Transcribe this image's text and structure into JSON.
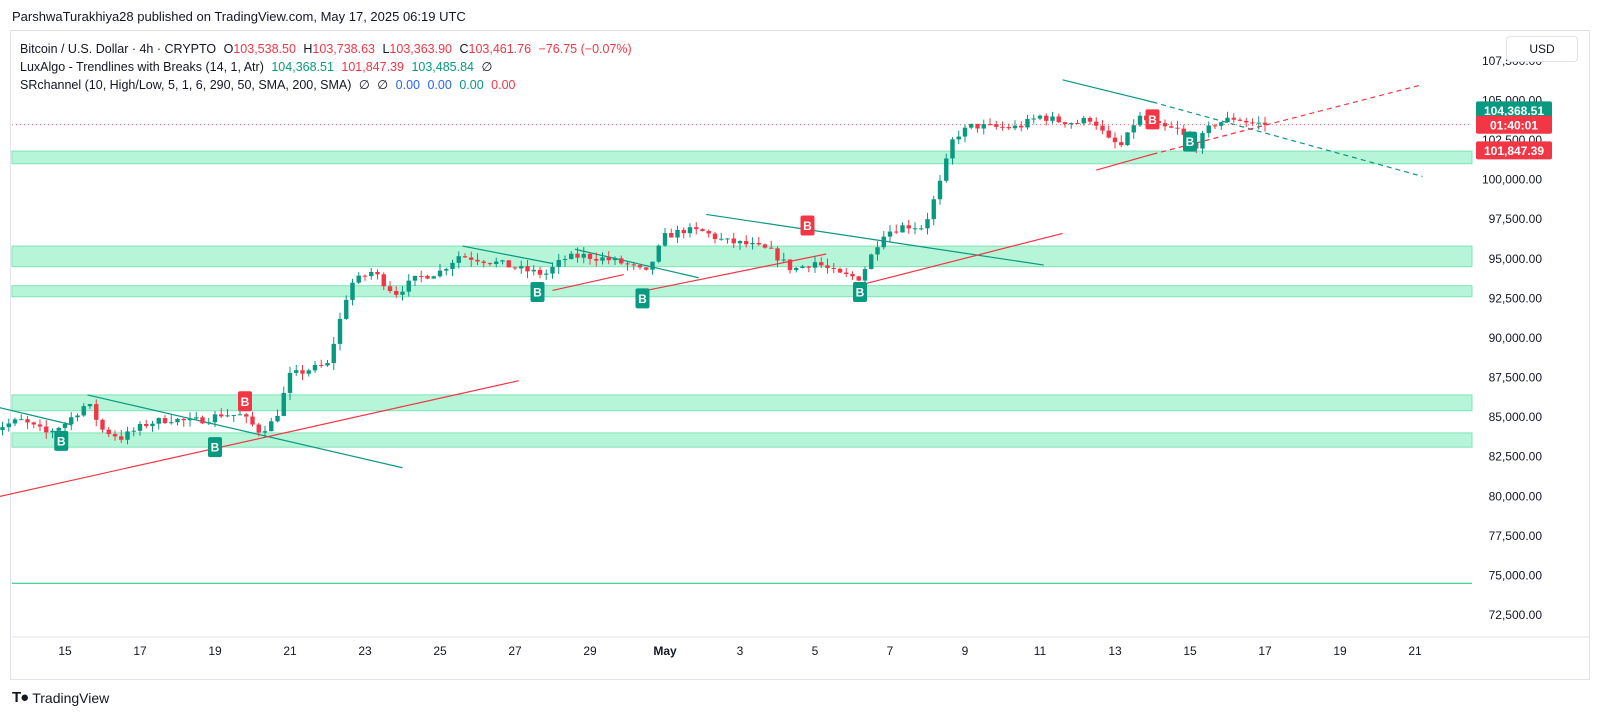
{
  "publish_line": "ParshwaTurakhiya28 published on TradingView.com, May 17, 2025 06:19 UTC",
  "legend": {
    "symbol": "Bitcoin / U.S. Dollar · 4h · CRYPTO",
    "o_label": "O",
    "o_value": "103,538.50",
    "h_label": "H",
    "h_value": "103,738.63",
    "l_label": "L",
    "l_value": "103,363.90",
    "c_label": "C",
    "c_value": "103,461.76",
    "change": "−76.75 (−0.07%)",
    "lux_name": "LuxAlgo - Trendlines with Breaks (14, 1, Atr)",
    "lux_v1": "104,368.51",
    "lux_v2": "101,847.39",
    "lux_v3": "103,485.84",
    "lux_v4": "∅",
    "sr_name": "SRchannel (10, High/Low, 5, 1, 6, 290, 50, SMA, 200, SMA)",
    "sr_v1": "∅",
    "sr_v2": "∅",
    "sr_v3": "0.00",
    "sr_v4": "0.00",
    "sr_v5": "0.00",
    "sr_v6": "0.00"
  },
  "currency_button": "USD",
  "brand": "TradingView",
  "chart_data": {
    "type": "candlestick",
    "ylim": [
      71000,
      108000
    ],
    "y_ticks": [
      72500,
      75000,
      77500,
      80000,
      82500,
      85000,
      87500,
      90000,
      92500,
      95000,
      97500,
      100000,
      102500,
      105000,
      107500
    ],
    "y_tick_labels": [
      "72,500.00",
      "75,000.00",
      "77,500.00",
      "80,000.00",
      "82,500.00",
      "85,000.00",
      "87,500.00",
      "90,000.00",
      "92,500.00",
      "95,000.00",
      "97,500.00",
      "100,000.00",
      "102,500.00",
      "105,000.00",
      "107,500.00"
    ],
    "x_start": "Apr 13 12:00",
    "x_ticks": [
      {
        "day": 2,
        "label": "15"
      },
      {
        "day": 4,
        "label": "17"
      },
      {
        "day": 6,
        "label": "19"
      },
      {
        "day": 8,
        "label": "21"
      },
      {
        "day": 10,
        "label": "23"
      },
      {
        "day": 12,
        "label": "25"
      },
      {
        "day": 14,
        "label": "27"
      },
      {
        "day": 16,
        "label": "29"
      },
      {
        "day": 18,
        "label": "May"
      },
      {
        "day": 20,
        "label": "3"
      },
      {
        "day": 22,
        "label": "5"
      },
      {
        "day": 24,
        "label": "7"
      },
      {
        "day": 26,
        "label": "9"
      },
      {
        "day": 28,
        "label": "11"
      },
      {
        "day": 30,
        "label": "13"
      },
      {
        "day": 32,
        "label": "15"
      },
      {
        "day": 34,
        "label": "17"
      },
      {
        "day": 36,
        "label": "19"
      },
      {
        "day": 38,
        "label": "21"
      }
    ],
    "price_path": [
      [
        0,
        84200
      ],
      [
        0.8,
        84800
      ],
      [
        1.5,
        84000
      ],
      [
        2,
        84600
      ],
      [
        2.6,
        85900
      ],
      [
        3.0,
        84200
      ],
      [
        3.5,
        83700
      ],
      [
        4.2,
        84600
      ],
      [
        4.8,
        84900
      ],
      [
        5.3,
        84700
      ],
      [
        5.8,
        84900
      ],
      [
        6.2,
        85200
      ],
      [
        6.7,
        85100
      ],
      [
        7.2,
        84100
      ],
      [
        7.6,
        84800
      ],
      [
        8.0,
        87600
      ],
      [
        8.5,
        88000
      ],
      [
        9.0,
        88300
      ],
      [
        9.6,
        93400
      ],
      [
        10.2,
        94200
      ],
      [
        10.8,
        92800
      ],
      [
        11.4,
        93800
      ],
      [
        12.0,
        94200
      ],
      [
        12.5,
        95200
      ],
      [
        13.0,
        95000
      ],
      [
        13.6,
        94700
      ],
      [
        14.2,
        94300
      ],
      [
        14.8,
        94000
      ],
      [
        15.3,
        95000
      ],
      [
        15.8,
        95200
      ],
      [
        16.4,
        95000
      ],
      [
        16.9,
        94700
      ],
      [
        17.5,
        94100
      ],
      [
        18.0,
        96400
      ],
      [
        18.5,
        96800
      ],
      [
        19.0,
        96700
      ],
      [
        19.6,
        96100
      ],
      [
        20.2,
        95900
      ],
      [
        20.8,
        95500
      ],
      [
        21.4,
        94300
      ],
      [
        22.0,
        94800
      ],
      [
        22.6,
        94000
      ],
      [
        23.2,
        93800
      ],
      [
        23.8,
        96600
      ],
      [
        24.4,
        97100
      ],
      [
        24.9,
        97000
      ],
      [
        25.3,
        99500
      ],
      [
        25.7,
        102700
      ],
      [
        26.2,
        103400
      ],
      [
        26.8,
        103300
      ],
      [
        27.4,
        103300
      ],
      [
        28.0,
        104000
      ],
      [
        28.5,
        103700
      ],
      [
        29.0,
        103600
      ],
      [
        29.4,
        103900
      ],
      [
        29.8,
        102500
      ],
      [
        30.2,
        102100
      ],
      [
        30.6,
        104000
      ],
      [
        31.2,
        103300
      ],
      [
        31.7,
        103100
      ],
      [
        32.1,
        102000
      ],
      [
        32.6,
        103500
      ],
      [
        33.2,
        103900
      ],
      [
        33.6,
        103600
      ],
      [
        34.1,
        103460
      ]
    ],
    "zones": [
      {
        "low": 101000,
        "high": 101800
      },
      {
        "low": 94500,
        "high": 95800
      },
      {
        "low": 92600,
        "high": 93300
      },
      {
        "low": 85400,
        "high": 86400
      },
      {
        "low": 83100,
        "high": 84000
      }
    ],
    "support_line": 74500,
    "trendlines": [
      {
        "kind": "resistance",
        "from": [
          -0.1,
          85800
        ],
        "to": [
          2.2,
          84500
        ]
      },
      {
        "kind": "resistance",
        "from": [
          2.6,
          86400
        ],
        "to": [
          11.0,
          81800
        ]
      },
      {
        "kind": "support",
        "from": [
          -0.1,
          79800
        ],
        "to": [
          14.1,
          87300
        ]
      },
      {
        "kind": "resistance",
        "from": [
          12.6,
          95800
        ],
        "to": [
          15.0,
          94700
        ]
      },
      {
        "kind": "support",
        "from": [
          15.0,
          93000
        ],
        "to": [
          16.9,
          94000
        ]
      },
      {
        "kind": "resistance",
        "from": [
          15.6,
          95600
        ],
        "to": [
          18.9,
          93800
        ]
      },
      {
        "kind": "support",
        "from": [
          17.5,
          93000
        ],
        "to": [
          22.3,
          95300
        ]
      },
      {
        "kind": "resistance",
        "from": [
          19.1,
          97800
        ],
        "to": [
          28.1,
          94600
        ]
      },
      {
        "kind": "support",
        "from": [
          23.3,
          93400
        ],
        "to": [
          28.6,
          96600
        ]
      },
      {
        "kind": "resistance",
        "from": [
          28.6,
          106300
        ],
        "to": [
          31.0,
          104900
        ]
      },
      {
        "kind": "support",
        "from": [
          29.5,
          100600
        ],
        "to": [
          31.0,
          101600
        ]
      },
      {
        "kind": "resistance-ext",
        "from": [
          31.0,
          104900
        ],
        "to": [
          38.2,
          100200
        ]
      },
      {
        "kind": "support-ext",
        "from": [
          31.0,
          101600
        ],
        "to": [
          38.2,
          106000
        ]
      }
    ],
    "markers": [
      {
        "day": 1.9,
        "price": 83500,
        "color": "green",
        "text": "B"
      },
      {
        "day": 6.0,
        "price": 83100,
        "color": "green",
        "text": "B"
      },
      {
        "day": 6.8,
        "price": 86000,
        "color": "red",
        "text": "B"
      },
      {
        "day": 14.6,
        "price": 92900,
        "color": "green",
        "text": "B"
      },
      {
        "day": 17.4,
        "price": 92500,
        "color": "green",
        "text": "B"
      },
      {
        "day": 21.8,
        "price": 97100,
        "color": "red",
        "text": "B"
      },
      {
        "day": 23.2,
        "price": 92900,
        "color": "green",
        "text": "B"
      },
      {
        "day": 31.0,
        "price": 103800,
        "color": "red",
        "text": "B"
      },
      {
        "day": 32.0,
        "price": 102400,
        "color": "green",
        "text": "B"
      }
    ],
    "last_price": 103461.76,
    "price_labels": [
      {
        "price": 104368.51,
        "text": "104,368.51",
        "color": "#089981"
      },
      {
        "price": 103461.76,
        "text": "01:40:01",
        "color": "#f23645"
      },
      {
        "price": 101847.39,
        "text": "101,847.39",
        "color": "#f23645"
      }
    ],
    "colors": {
      "up": "#089981",
      "down": "#f23645",
      "zone": "#b7f5d9",
      "zone_edge": "#7fe3b7",
      "resistance": "#089981",
      "support": "#f23645",
      "axis_text": "#131722",
      "grid": "#f0f3fa"
    }
  }
}
